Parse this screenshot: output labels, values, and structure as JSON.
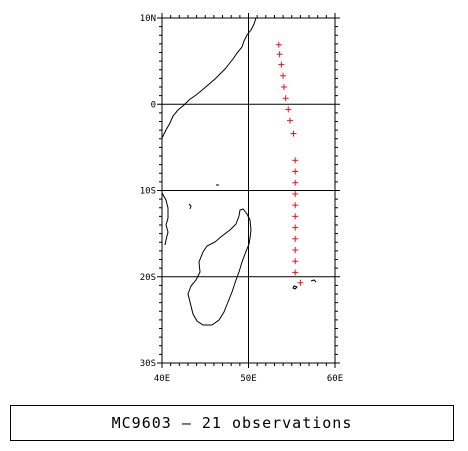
{
  "map": {
    "lon_range": [
      40,
      60
    ],
    "lat_range": [
      -30,
      10
    ],
    "x_ticks": [
      {
        "value": 40,
        "label": "40E"
      },
      {
        "value": 50,
        "label": "50E"
      },
      {
        "value": 60,
        "label": "60E"
      }
    ],
    "y_ticks": [
      {
        "value": 10,
        "label": "10N"
      },
      {
        "value": 0,
        "label": "0"
      },
      {
        "value": -10,
        "label": "10S"
      },
      {
        "value": -20,
        "label": "20S"
      },
      {
        "value": -30,
        "label": "30S"
      }
    ],
    "grid": true,
    "marker": "+",
    "marker_color": "#e8161a",
    "coast_color": "#000000",
    "observations": [
      {
        "lon": 53.5,
        "lat": 6.9
      },
      {
        "lon": 53.6,
        "lat": 5.8
      },
      {
        "lon": 53.8,
        "lat": 4.6
      },
      {
        "lon": 54.0,
        "lat": 3.3
      },
      {
        "lon": 54.1,
        "lat": 2.0
      },
      {
        "lon": 54.3,
        "lat": 0.7
      },
      {
        "lon": 54.6,
        "lat": -0.6
      },
      {
        "lon": 54.8,
        "lat": -1.9
      },
      {
        "lon": 55.2,
        "lat": -3.4
      },
      {
        "lon": 55.4,
        "lat": -6.5
      },
      {
        "lon": 55.4,
        "lat": -7.8
      },
      {
        "lon": 55.4,
        "lat": -9.1
      },
      {
        "lon": 55.4,
        "lat": -10.4
      },
      {
        "lon": 55.4,
        "lat": -11.7
      },
      {
        "lon": 55.4,
        "lat": -13.0
      },
      {
        "lon": 55.4,
        "lat": -14.3
      },
      {
        "lon": 55.4,
        "lat": -15.6
      },
      {
        "lon": 55.4,
        "lat": -16.9
      },
      {
        "lon": 55.4,
        "lat": -18.2
      },
      {
        "lon": 55.4,
        "lat": -19.5
      },
      {
        "lon": 56.0,
        "lat": -20.7
      }
    ]
  },
  "caption": "MC9603 – 21 observations"
}
